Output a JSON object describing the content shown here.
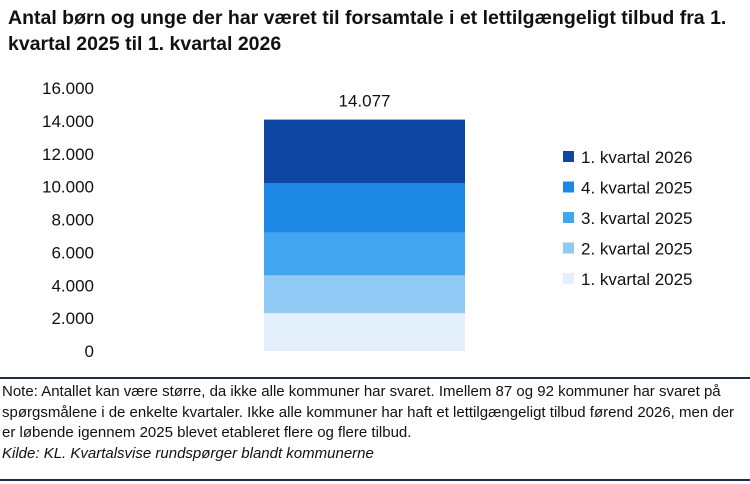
{
  "title": "Antal børn og unge der har været til forsamtale i et lettilgængeligt tilbud fra 1. kvartal 2025 til 1. kvartal 2026",
  "note": "Note: Antallet kan være større, da ikke alle kommuner har svaret. Imellem 87 og 92 kommuner har svaret på spørgsmålene i de enkelte kvartaler. Ikke alle kommuner har haft et lettilgængeligt tilbud førend 2026, men der er løbende igennem 2025 blevet etableret flere og flere tilbud.",
  "source": "Kilde: KL. Kvartalsvise rundspørger blandt kommunerne",
  "chart_data": {
    "type": "bar",
    "stacked": true,
    "title": "Antal børn og unge der har været til forsamtale i et lettilgængeligt tilbud fra 1. kvartal 2025 til 1. kvartal 2026",
    "categories": [
      ""
    ],
    "series": [
      {
        "name": "1. kvartal 2025",
        "values": [
          2300
        ],
        "color": "#e3f0fb"
      },
      {
        "name": "2. kvartal 2025",
        "values": [
          2300
        ],
        "color": "#90caf5"
      },
      {
        "name": "3. kvartal 2025",
        "values": [
          2600
        ],
        "color": "#42a5ef"
      },
      {
        "name": "4. kvartal 2025",
        "values": [
          3000
        ],
        "color": "#1e88e5"
      },
      {
        "name": "1. kvartal 2026",
        "values": [
          3877
        ],
        "color": "#0d47a1"
      }
    ],
    "total_label": "14.077",
    "ylim": [
      0,
      16000
    ],
    "yticks": [
      0,
      2000,
      4000,
      6000,
      8000,
      10000,
      12000,
      14000,
      16000
    ],
    "ytick_labels": [
      "0",
      "2.000",
      "4.000",
      "6.000",
      "8.000",
      "10.000",
      "12.000",
      "14.000",
      "16.000"
    ],
    "grid": false,
    "legend_position": "right",
    "legend_order": [
      "1. kvartal 2026",
      "4. kvartal 2025",
      "3. kvartal 2025",
      "2. kvartal 2025",
      "1. kvartal 2025"
    ]
  }
}
